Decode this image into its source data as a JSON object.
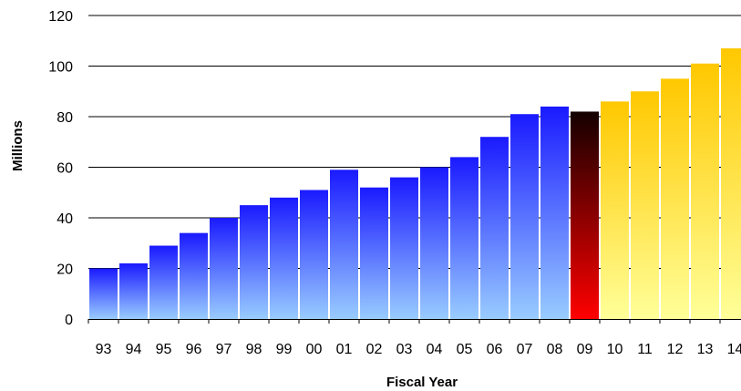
{
  "chart_data": {
    "type": "bar",
    "title": "",
    "xlabel": "Fiscal Year",
    "ylabel": "Millions",
    "ylim": [
      0,
      120
    ],
    "y_ticks": [
      "0",
      "20",
      "40",
      "60",
      "80",
      "100",
      "120"
    ],
    "grid": "horizontal",
    "legend": "none",
    "categories": [
      "93",
      "94",
      "95",
      "96",
      "97",
      "98",
      "99",
      "00",
      "01",
      "02",
      "03",
      "04",
      "05",
      "06",
      "07",
      "08",
      "09",
      "10",
      "11",
      "12",
      "13",
      "14"
    ],
    "values": [
      20,
      22,
      29,
      34,
      40,
      45,
      48,
      51,
      59,
      52,
      56,
      60,
      64,
      72,
      81,
      84,
      82,
      86,
      90,
      95,
      101,
      107
    ],
    "colors": {
      "historical": {
        "top": "#1a1aff",
        "bottom": "#99ccff"
      },
      "current": {
        "top": "#140000",
        "bottom": "#ff0000"
      },
      "projected": {
        "top": "#ffc800",
        "bottom": "#ffff99"
      }
    },
    "bar_groups": [
      "historical",
      "historical",
      "historical",
      "historical",
      "historical",
      "historical",
      "historical",
      "historical",
      "historical",
      "historical",
      "historical",
      "historical",
      "historical",
      "historical",
      "historical",
      "historical",
      "current",
      "projected",
      "projected",
      "projected",
      "projected",
      "projected"
    ]
  }
}
